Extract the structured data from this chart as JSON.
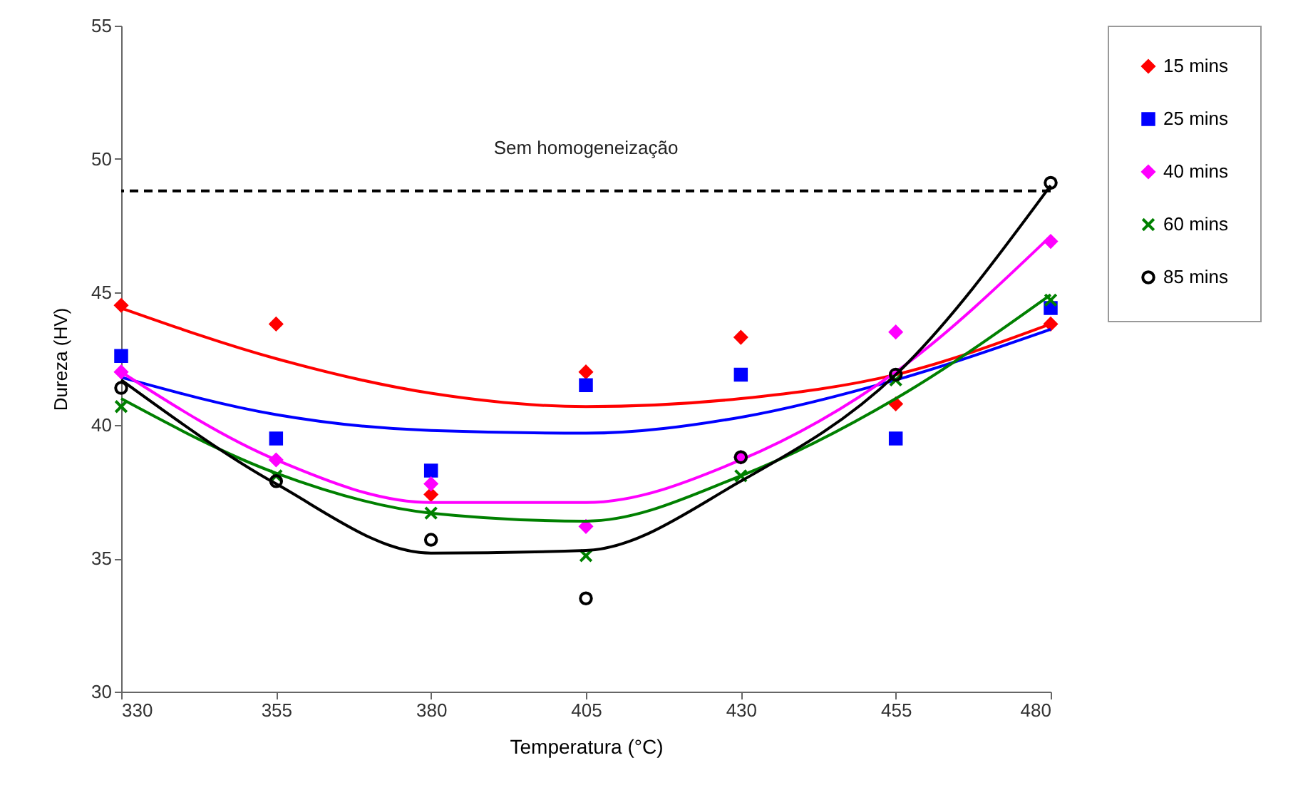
{
  "chart_data": {
    "type": "scatter",
    "xlabel": "Temperatura (°C)",
    "ylabel": "Dureza (HV)",
    "x": [
      330,
      355,
      380,
      405,
      430,
      455,
      480
    ],
    "xlim": [
      330,
      480
    ],
    "xticks": [
      330,
      355,
      380,
      405,
      430,
      455,
      480
    ],
    "ylim": [
      30,
      55
    ],
    "yticks": [
      30,
      35,
      40,
      45,
      50,
      55
    ],
    "grid": false,
    "legend": "right",
    "series": [
      {
        "name": "15 mins",
        "marker": "diamond",
        "color": "#ff0000",
        "values": [
          44.5,
          43.8,
          37.4,
          42.0,
          43.3,
          40.8,
          43.8
        ]
      },
      {
        "type": "line",
        "color": "#ff0000",
        "values": [
          44.4,
          42.5,
          41.2,
          40.7,
          41.0,
          41.9,
          43.8
        ]
      },
      {
        "name": "25 mins",
        "marker": "square",
        "color": "#0000ff",
        "values": [
          42.6,
          39.5,
          38.3,
          41.5,
          41.9,
          39.5,
          44.4
        ]
      },
      {
        "type": "line",
        "color": "#0000ff",
        "values": [
          41.8,
          40.4,
          39.8,
          39.7,
          40.3,
          41.7,
          43.6
        ]
      },
      {
        "name": "40 mins",
        "marker": "diamond",
        "color": "#ff00ff",
        "values": [
          42.0,
          38.7,
          37.8,
          36.2,
          38.8,
          43.5,
          46.9
        ]
      },
      {
        "type": "line",
        "color": "#ff00ff",
        "values": [
          42.0,
          38.7,
          37.1,
          37.1,
          38.7,
          42.0,
          47.1
        ]
      },
      {
        "name": "60 mins",
        "marker": "cross",
        "color": "#008000",
        "values": [
          40.7,
          38.1,
          36.7,
          35.1,
          38.1,
          41.7,
          44.7
        ]
      },
      {
        "type": "line",
        "color": "#008000",
        "values": [
          41.0,
          38.2,
          36.7,
          36.4,
          38.1,
          41.0,
          44.9
        ]
      },
      {
        "name": "85 mins",
        "marker": "circle",
        "color": "#000000",
        "values": [
          41.4,
          37.9,
          35.7,
          33.5,
          38.8,
          41.9,
          49.1
        ]
      },
      {
        "type": "line",
        "color": "#000000",
        "values": [
          41.7,
          37.8,
          35.2,
          35.3,
          37.9,
          41.9,
          49.0
        ]
      }
    ],
    "ref_lines": [
      {
        "axis": "y",
        "value": 48.8,
        "label": "Sem homogeneização",
        "color": "#000000",
        "line_style": "dashed"
      }
    ]
  }
}
